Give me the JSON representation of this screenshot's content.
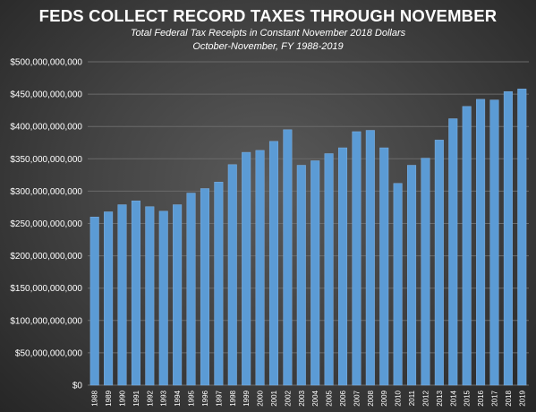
{
  "chart_data": {
    "type": "bar",
    "title": "FEDS COLLECT RECORD TAXES THROUGH NOVEMBER",
    "subtitle_lines": [
      "Total Federal Tax Receipts in Constant November 2018 Dollars",
      "October-November, FY 1988-2019"
    ],
    "categories": [
      "1988",
      "1989",
      "1990",
      "1991",
      "1992",
      "1993",
      "1994",
      "1995",
      "1996",
      "1997",
      "1998",
      "1999",
      "2000",
      "2001",
      "2002",
      "2003",
      "2004",
      "2005",
      "2006",
      "2007",
      "2008",
      "2009",
      "2010",
      "2011",
      "2012",
      "2013",
      "2014",
      "2015",
      "2016",
      "2017",
      "2018",
      "2019"
    ],
    "values": [
      260000000000,
      268000000000,
      279000000000,
      285000000000,
      276000000000,
      269000000000,
      279000000000,
      297000000000,
      304000000000,
      314000000000,
      341000000000,
      360000000000,
      363000000000,
      377000000000,
      395000000000,
      340000000000,
      347000000000,
      358000000000,
      367000000000,
      392000000000,
      394000000000,
      367000000000,
      312000000000,
      340000000000,
      351000000000,
      379000000000,
      412000000000,
      431000000000,
      442000000000,
      441000000000,
      454000000000,
      458000000000
    ],
    "ylim": [
      0,
      500000000000
    ],
    "yticks": [
      "$0",
      "$50,000,000,000",
      "$100,000,000,000",
      "$150,000,000,000",
      "$200,000,000,000",
      "$250,000,000,000",
      "$300,000,000,000",
      "$350,000,000,000",
      "$400,000,000,000",
      "$450,000,000,000",
      "$500,000,000,000"
    ],
    "grid": true,
    "colors": {
      "bar": "#5b9bd5",
      "bar_edge": "#7fb1e3",
      "background": "#3a3a3a",
      "text": "#ffffff",
      "grid": "#6a6a6a"
    }
  }
}
